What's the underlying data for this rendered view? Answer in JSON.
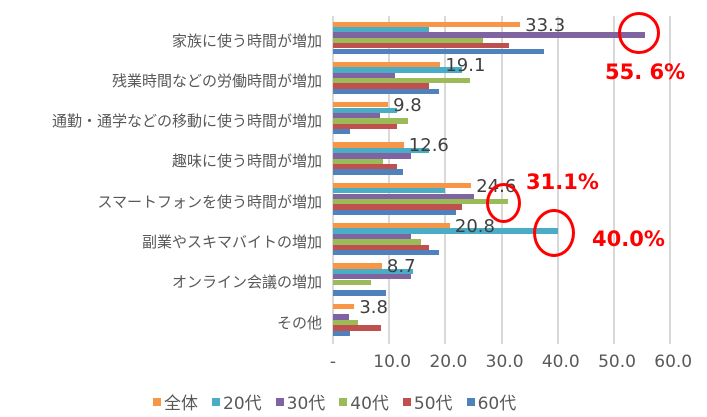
{
  "chart_data": {
    "type": "bar",
    "orientation": "horizontal",
    "title": "",
    "xlabel": "",
    "ylabel": "",
    "xlim": [
      0,
      60
    ],
    "x_ticks": [
      "-",
      "10.0",
      "20.0",
      "30.0",
      "40.0",
      "50.0",
      "60.0"
    ],
    "grid": true,
    "legend_position": "bottom",
    "categories": [
      "家族に使う時間が増加",
      "残業時間などの労働時間が増加",
      "通勤・通学などの移動に使う時間が増加",
      "趣味に使う時間が増加",
      "スマートフォンを使う時間が増加",
      "副業やスキマバイトの増加",
      "オンライン会議の増加",
      "その他"
    ],
    "series": [
      {
        "name": "全体",
        "color": "#F79646",
        "values": [
          33.3,
          19.1,
          9.8,
          12.6,
          24.6,
          20.8,
          8.7,
          3.8
        ]
      },
      {
        "name": "20代",
        "color": "#4BACC6",
        "values": [
          17.1,
          22.9,
          11.4,
          17.1,
          20.0,
          40.0,
          14.3,
          0.0
        ]
      },
      {
        "name": "30代",
        "color": "#8064A2",
        "values": [
          55.6,
          11.1,
          8.3,
          13.9,
          25.0,
          13.9,
          13.9,
          2.8
        ]
      },
      {
        "name": "40代",
        "color": "#9BBB59",
        "values": [
          26.7,
          24.4,
          13.3,
          8.9,
          31.1,
          15.6,
          6.7,
          4.4
        ]
      },
      {
        "name": "50代",
        "color": "#C0504D",
        "values": [
          31.4,
          17.1,
          11.4,
          11.4,
          22.9,
          17.1,
          0.0,
          8.6
        ]
      },
      {
        "name": "60代",
        "color": "#4F81BD",
        "values": [
          37.5,
          18.8,
          3.1,
          12.5,
          21.9,
          18.8,
          9.4,
          3.1
        ]
      }
    ],
    "data_labels": [
      "33.3",
      "19.1",
      "9.8",
      "12.6",
      "24.6",
      "20.8",
      "8.7",
      "3.8"
    ],
    "annotations": [
      {
        "text": "55. 6%",
        "target": "家族に使う時間が増加 / 30代",
        "color": "#FF0000"
      },
      {
        "text": "31.1%",
        "target": "スマートフォンを使う時間が増加 / 40代",
        "color": "#FF0000"
      },
      {
        "text": "40.0%",
        "target": "副業やスキマバイトの増加 / 20代",
        "color": "#FF0000"
      }
    ]
  }
}
